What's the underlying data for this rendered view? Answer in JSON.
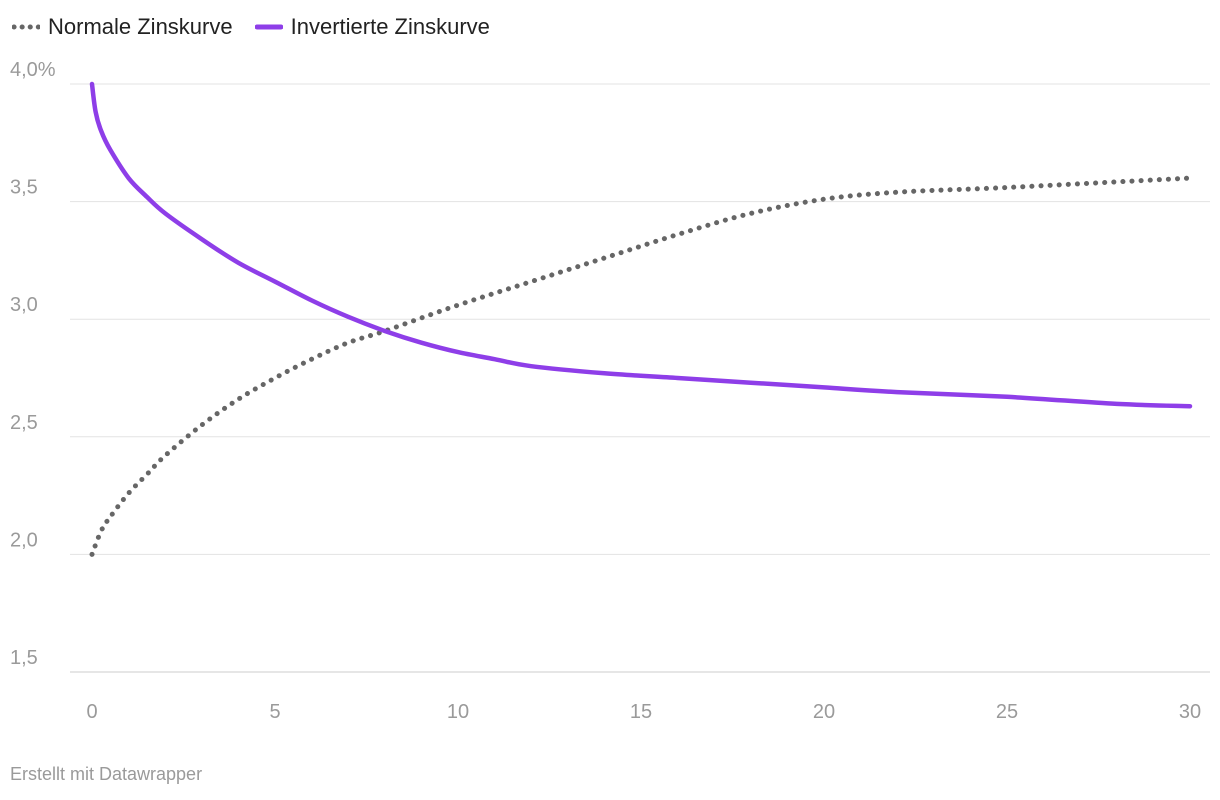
{
  "legend": [
    {
      "label": "Normale Zinskurve",
      "color": "#666666",
      "style": "dotted"
    },
    {
      "label": "Invertierte Zinskurve",
      "color": "#8e3ee8",
      "style": "solid"
    }
  ],
  "footer": "Erstellt mit Datawrapper",
  "chart_data": {
    "type": "line",
    "title": "",
    "xlabel": "",
    "ylabel": "",
    "xlim": [
      0,
      30
    ],
    "ylim": [
      1.5,
      4.0
    ],
    "xticks": [
      0,
      5,
      10,
      15,
      20,
      25,
      30
    ],
    "xtick_labels": [
      "0",
      "5",
      "10",
      "15",
      "20",
      "25",
      "30"
    ],
    "yticks": [
      1.5,
      2.0,
      2.5,
      3.0,
      3.5,
      4.0
    ],
    "ytick_labels": [
      "1,5",
      "2,0",
      "2,5",
      "3,0",
      "3,5",
      "4,0%"
    ],
    "grid": true,
    "legend_position": "top-left",
    "series": [
      {
        "name": "Normale Zinskurve",
        "color": "#666666",
        "style": "dotted",
        "x": [
          0,
          0.25,
          0.5,
          1,
          1.5,
          2,
          3,
          4,
          5,
          6,
          7,
          8,
          10,
          12,
          14,
          16,
          18,
          20,
          22,
          25,
          30
        ],
        "y": [
          2.0,
          2.1,
          2.16,
          2.26,
          2.34,
          2.42,
          2.55,
          2.66,
          2.75,
          2.83,
          2.9,
          2.95,
          3.06,
          3.16,
          3.26,
          3.36,
          3.45,
          3.51,
          3.54,
          3.56,
          3.6
        ]
      },
      {
        "name": "Invertierte Zinskurve",
        "color": "#8e3ee8",
        "style": "solid",
        "x": [
          0,
          0.1,
          0.25,
          0.5,
          1,
          1.5,
          2,
          3,
          4,
          5,
          6,
          7,
          8,
          9,
          10,
          11,
          12,
          14,
          16,
          18,
          20,
          22,
          25,
          28,
          30
        ],
        "y": [
          4.0,
          3.88,
          3.8,
          3.72,
          3.6,
          3.52,
          3.45,
          3.34,
          3.24,
          3.16,
          3.08,
          3.01,
          2.95,
          2.9,
          2.86,
          2.83,
          2.8,
          2.77,
          2.75,
          2.73,
          2.71,
          2.69,
          2.67,
          2.64,
          2.63
        ]
      }
    ]
  }
}
